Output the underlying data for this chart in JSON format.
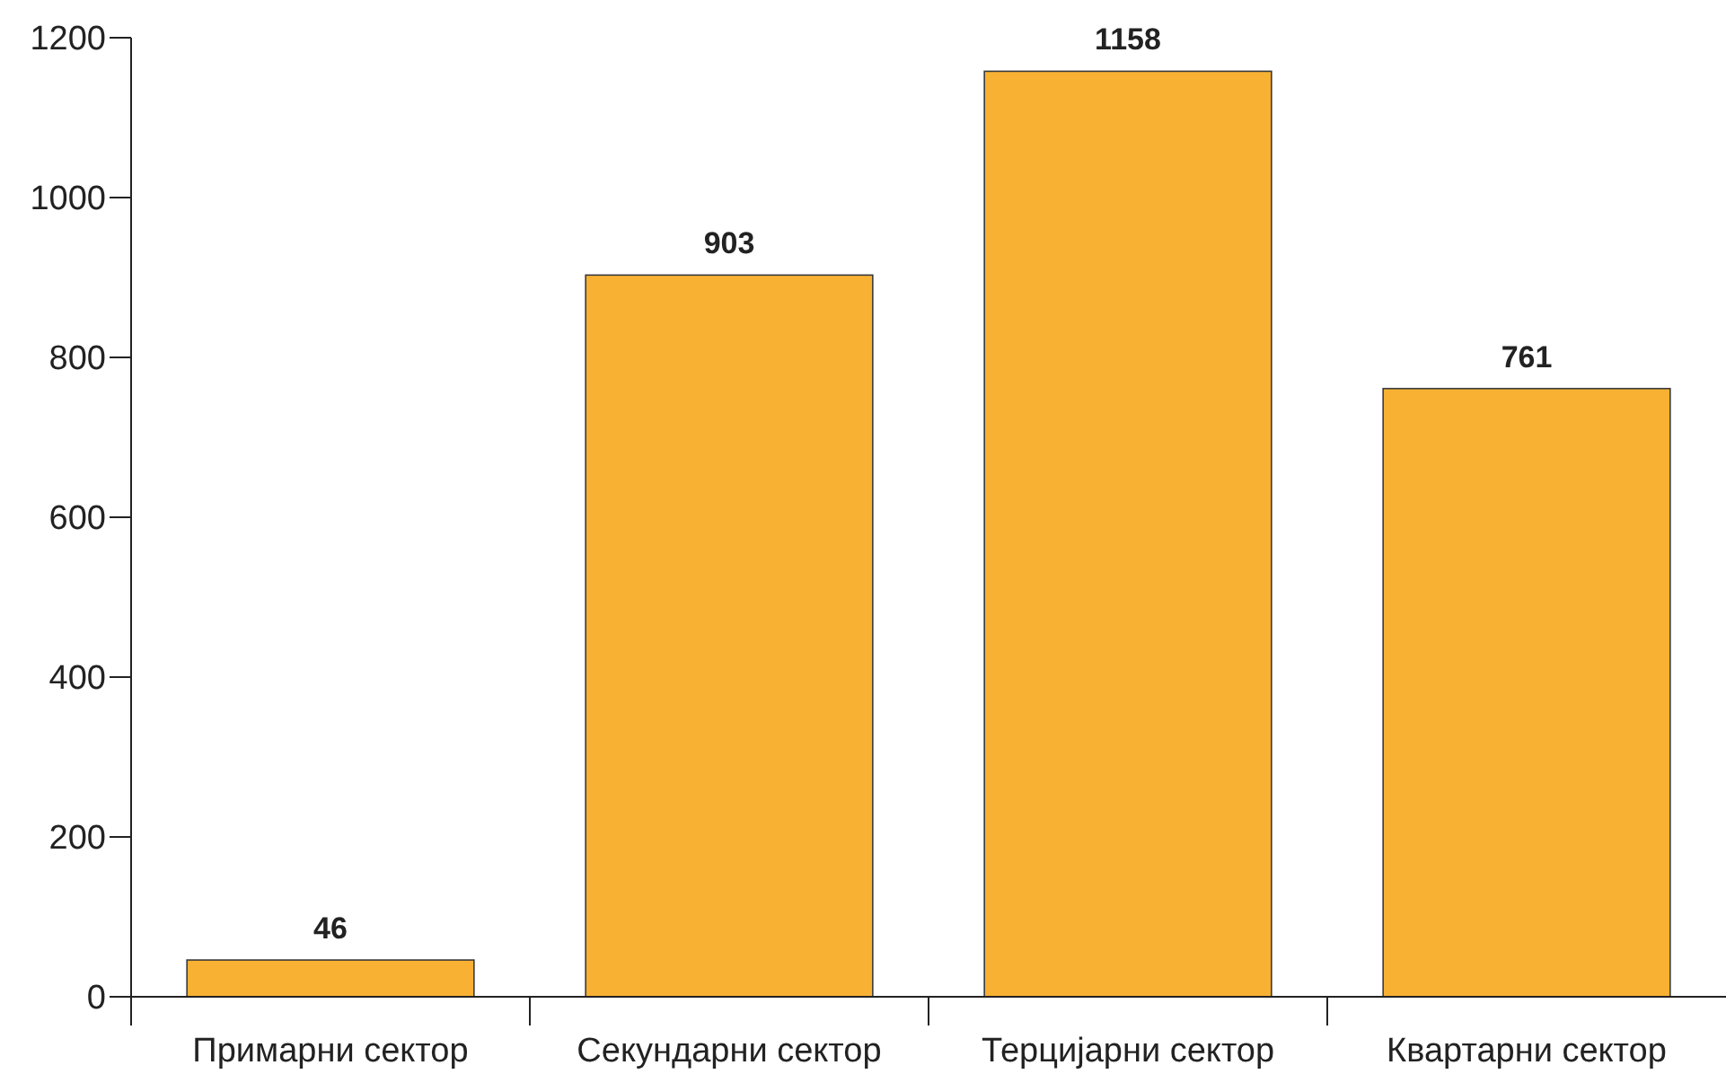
{
  "chart_data": {
    "type": "bar",
    "categories": [
      "Примарни сектор",
      "Секундарни сектор",
      "Терцијарни сектор",
      "Квартарни сектор"
    ],
    "values": [
      46,
      903,
      1158,
      761
    ],
    "color": "#f8b133",
    "ylim": [
      0,
      1200
    ],
    "yticks": [
      0,
      200,
      400,
      600,
      800,
      1000,
      1200
    ],
    "data_labels": true
  }
}
